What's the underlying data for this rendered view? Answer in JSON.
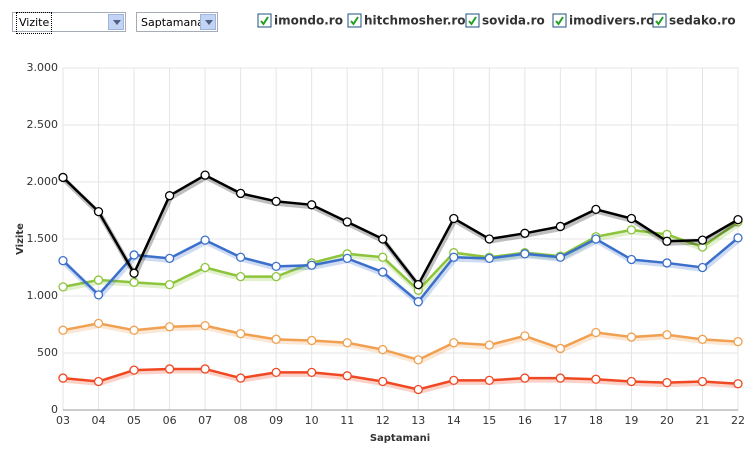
{
  "controls": [
    "Vizite",
    "Saptamana"
  ],
  "chart_data": {
    "type": "line",
    "x_label": "Saptamani",
    "y_label": "Vizite",
    "categories": [
      "03",
      "04",
      "05",
      "06",
      "07",
      "08",
      "09",
      "10",
      "11",
      "12",
      "13",
      "14",
      "15",
      "16",
      "17",
      "18",
      "19",
      "20",
      "21",
      "22"
    ],
    "ylim": [
      0,
      3000
    ],
    "yticks": [
      0,
      500,
      {
        "value": 1000,
        "label": "1.000"
      },
      {
        "value": 1500,
        "label": "1.500"
      },
      {
        "value": 2000,
        "label": "2.000"
      },
      {
        "value": 2500,
        "label": "2.500"
      },
      {
        "value": 3000,
        "label": "3.000"
      }
    ],
    "grid": true,
    "series": [
      {
        "name": "imondo.ro",
        "color": "#8cc43c",
        "values": [
          1080,
          1140,
          1120,
          1100,
          1250,
          1170,
          1170,
          1290,
          1370,
          1340,
          1050,
          1380,
          1340,
          1380,
          1350,
          1520,
          1580,
          1540,
          1430,
          1650
        ]
      },
      {
        "name": "hitchmosher.ro",
        "color": "#3a6fcc",
        "values": [
          1310,
          1010,
          1360,
          1330,
          1490,
          1340,
          1260,
          1270,
          1330,
          1210,
          950,
          1340,
          1330,
          1370,
          1340,
          1500,
          1320,
          1290,
          1250,
          1510
        ]
      },
      {
        "name": "sovida.ro",
        "color": "#f0a050",
        "values": [
          700,
          760,
          700,
          730,
          740,
          670,
          620,
          610,
          590,
          530,
          440,
          590,
          570,
          650,
          540,
          680,
          640,
          660,
          620,
          600
        ]
      },
      {
        "name": "imodivers.ro",
        "color": "#f04822",
        "values": [
          280,
          250,
          350,
          360,
          360,
          280,
          330,
          330,
          300,
          250,
          180,
          260,
          260,
          280,
          280,
          270,
          250,
          240,
          250,
          230
        ]
      },
      {
        "name": "sedako.ro",
        "color": "#000000",
        "values": [
          2040,
          1740,
          1200,
          1880,
          2060,
          1900,
          1830,
          1800,
          1650,
          1500,
          1100,
          1680,
          1500,
          1550,
          1610,
          1760,
          1680,
          1480,
          1490,
          1670
        ]
      }
    ]
  }
}
